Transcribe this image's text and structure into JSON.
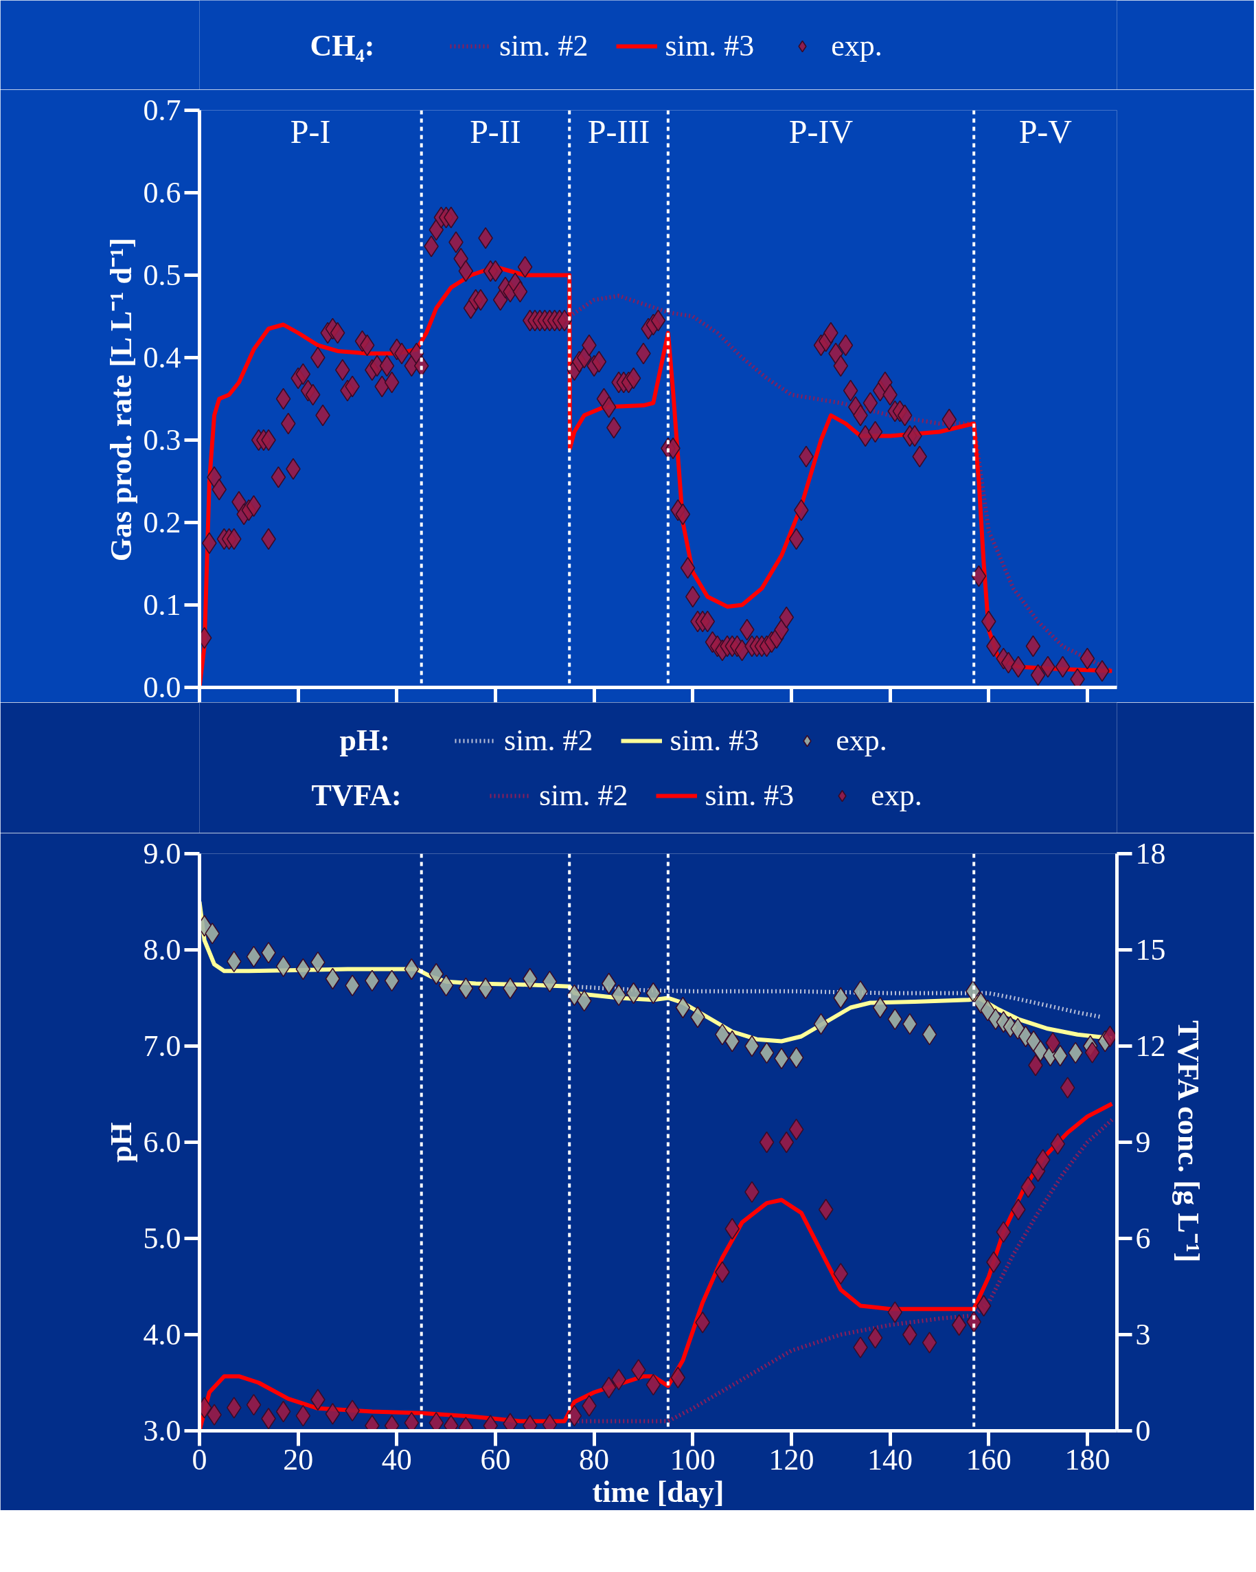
{
  "chart_data": [
    {
      "type": "line",
      "ylabel": "Gas prod. rate [L L⁻¹ d⁻¹]",
      "legend_title": "CH₄:",
      "legend": "top",
      "tick_labels": "y",
      "xlim": [
        0,
        186
      ],
      "xticks": [
        0,
        20,
        40,
        60,
        80,
        100,
        120,
        140,
        160,
        180
      ],
      "ylim": [
        0,
        0.7
      ],
      "yticks": [
        {
          "value": 0,
          "label": "0.0"
        },
        {
          "value": 0.1,
          "label": "0.1"
        },
        {
          "value": 0.2,
          "label": "0.2"
        },
        {
          "value": 0.3,
          "label": "0.3"
        },
        {
          "value": 0.4,
          "label": "0.4"
        },
        {
          "value": 0.5,
          "label": "0.5"
        },
        {
          "value": 0.6,
          "label": "0.6"
        },
        {
          "value": 0.7,
          "label": "0.7"
        }
      ],
      "ref_lines": [
        {
          "axis": "x",
          "value": 45,
          "color": "#ffffff",
          "line_style": "dashed"
        },
        {
          "axis": "x",
          "value": 75,
          "color": "#ffffff",
          "line_style": "dashed"
        },
        {
          "axis": "x",
          "value": 95,
          "color": "#ffffff",
          "line_style": "dashed"
        },
        {
          "axis": "x",
          "value": 157,
          "color": "#ffffff",
          "line_style": "dashed"
        }
      ],
      "annotations": [
        "P-I",
        "P-II",
        "P-III",
        "P-IV",
        "P-V"
      ],
      "series": [
        {
          "name": "sim. #2",
          "type": "line",
          "line_style": "dotted",
          "color": "#8a1e5a",
          "x": [
            75,
            80,
            85,
            90,
            95,
            100,
            105,
            110,
            115,
            120,
            125,
            130,
            140,
            150,
            157,
            160,
            165,
            170,
            175,
            180,
            185
          ],
          "values": [
            0.45,
            0.47,
            0.475,
            0.465,
            0.455,
            0.45,
            0.43,
            0.4,
            0.375,
            0.355,
            0.35,
            0.345,
            0.33,
            0.32,
            0.32,
            0.19,
            0.12,
            0.08,
            0.05,
            0.035,
            0.02
          ]
        },
        {
          "name": "sim. #3",
          "type": "line",
          "line_style": "solid",
          "color": "#ff0000",
          "x": [
            0,
            1,
            2,
            3,
            4,
            6,
            8,
            11,
            14,
            17,
            20,
            24,
            28,
            34,
            40,
            44,
            46,
            48,
            51,
            55,
            60,
            66,
            75,
            75.1,
            76,
            78,
            82,
            90,
            92,
            95,
            96,
            97,
            98,
            100,
            103,
            107,
            110,
            114,
            118,
            122,
            126,
            128,
            131,
            134,
            140,
            150,
            157,
            158,
            159,
            160,
            162,
            166,
            175,
            185
          ],
          "values": [
            0,
            0.05,
            0.25,
            0.33,
            0.35,
            0.355,
            0.37,
            0.41,
            0.435,
            0.44,
            0.43,
            0.415,
            0.408,
            0.405,
            0.405,
            0.41,
            0.43,
            0.46,
            0.485,
            0.5,
            0.51,
            0.5,
            0.5,
            0.29,
            0.31,
            0.33,
            0.34,
            0.342,
            0.345,
            0.43,
            0.36,
            0.28,
            0.2,
            0.14,
            0.11,
            0.098,
            0.1,
            0.12,
            0.16,
            0.22,
            0.3,
            0.33,
            0.32,
            0.305,
            0.305,
            0.31,
            0.32,
            0.25,
            0.15,
            0.07,
            0.035,
            0.025,
            0.022,
            0.02
          ]
        },
        {
          "name": "exp.",
          "type": "scatter",
          "marker": "diamond",
          "color": "#9b1b45",
          "x": [
            1,
            2,
            3,
            4,
            5,
            6,
            7,
            8,
            9,
            10,
            11,
            12,
            13,
            14,
            14,
            16,
            17,
            18,
            19,
            20,
            21,
            22,
            23,
            24,
            25,
            26,
            27,
            28,
            29,
            30,
            31,
            33,
            34,
            35,
            36,
            37,
            38,
            39,
            40,
            41,
            43,
            44,
            45,
            47,
            48,
            49,
            50,
            51,
            52,
            53,
            54,
            55,
            56,
            57,
            58,
            59,
            60,
            61,
            62,
            63,
            64,
            65,
            66,
            67,
            68,
            69,
            70,
            71,
            72,
            73,
            74,
            76,
            77,
            78,
            79,
            80,
            81,
            82,
            83,
            84,
            85,
            86,
            87,
            88,
            90,
            91,
            92,
            93,
            95,
            96,
            97,
            98,
            99,
            100,
            101,
            102,
            103,
            104,
            105,
            106,
            107,
            108,
            109,
            110,
            111,
            112,
            113,
            114,
            115,
            116,
            117,
            118,
            119,
            121,
            122,
            123,
            126,
            127,
            128,
            129,
            130,
            131,
            132,
            133,
            134,
            135,
            136,
            137,
            138,
            139,
            140,
            141,
            142,
            143,
            144,
            145,
            146,
            152,
            158,
            160,
            161,
            163,
            164,
            166,
            169,
            170,
            172,
            175,
            178,
            180,
            183
          ],
          "values": [
            0.06,
            0.175,
            0.255,
            0.24,
            0.18,
            0.18,
            0.18,
            0.225,
            0.21,
            0.215,
            0.22,
            0.3,
            0.3,
            0.3,
            0.18,
            0.255,
            0.35,
            0.32,
            0.265,
            0.375,
            0.38,
            0.36,
            0.355,
            0.4,
            0.33,
            0.43,
            0.435,
            0.43,
            0.385,
            0.36,
            0.365,
            0.42,
            0.415,
            0.385,
            0.39,
            0.365,
            0.39,
            0.37,
            0.41,
            0.405,
            0.39,
            0.405,
            0.39,
            0.535,
            0.555,
            0.57,
            0.57,
            0.57,
            0.54,
            0.52,
            0.505,
            0.46,
            0.47,
            0.47,
            0.545,
            0.505,
            0.505,
            0.47,
            0.485,
            0.48,
            0.49,
            0.48,
            0.51,
            0.445,
            0.445,
            0.445,
            0.445,
            0.445,
            0.445,
            0.445,
            0.445,
            0.385,
            0.395,
            0.4,
            0.415,
            0.39,
            0.395,
            0.35,
            0.34,
            0.315,
            0.37,
            0.37,
            0.37,
            0.375,
            0.405,
            0.435,
            0.44,
            0.445,
            0.29,
            0.29,
            0.215,
            0.21,
            0.145,
            0.11,
            0.08,
            0.08,
            0.08,
            0.055,
            0.05,
            0.045,
            0.05,
            0.05,
            0.05,
            0.045,
            0.07,
            0.05,
            0.05,
            0.05,
            0.05,
            0.055,
            0.06,
            0.07,
            0.085,
            0.18,
            0.215,
            0.28,
            0.415,
            0.42,
            0.43,
            0.405,
            0.39,
            0.415,
            0.36,
            0.34,
            0.33,
            0.305,
            0.345,
            0.31,
            0.36,
            0.37,
            0.355,
            0.335,
            0.335,
            0.33,
            0.305,
            0.305,
            0.28,
            0.325,
            0.135,
            0.08,
            0.05,
            0.035,
            0.03,
            0.025,
            0.05,
            0.015,
            0.025,
            0.025,
            0.01,
            0.035,
            0.02
          ]
        }
      ]
    },
    {
      "type": "line",
      "xlabel": "time [day]",
      "ylabel": "pH",
      "y2label": "TVFA conc. [g L⁻¹]",
      "legend_title": "pH:",
      "legend": "top",
      "annotations": [
        "TVFA:"
      ],
      "xlim": [
        0,
        186
      ],
      "xticks": [
        0,
        20,
        40,
        60,
        80,
        100,
        120,
        140,
        160,
        180
      ],
      "ylim": [
        3,
        9
      ],
      "yticks": [
        {
          "value": 3,
          "label": "3.0"
        },
        {
          "value": 4,
          "label": "4.0"
        },
        {
          "value": 5,
          "label": "5.0"
        },
        {
          "value": 6,
          "label": "6.0"
        },
        {
          "value": 7,
          "label": "7.0"
        },
        {
          "value": 8,
          "label": "8.0"
        },
        {
          "value": 9,
          "label": "9.0"
        }
      ],
      "y2lim": [
        0,
        18
      ],
      "y2ticks": [
        0,
        3,
        6,
        9,
        12,
        15,
        18
      ],
      "ref_lines": [
        {
          "axis": "x",
          "value": 45,
          "color": "#ffffff",
          "line_style": "dashed"
        },
        {
          "axis": "x",
          "value": 75,
          "color": "#ffffff",
          "line_style": "dashed"
        },
        {
          "axis": "x",
          "value": 95,
          "color": "#ffffff",
          "line_style": "dashed"
        },
        {
          "axis": "x",
          "value": 157,
          "color": "#ffffff",
          "line_style": "dashed"
        }
      ],
      "series": [
        {
          "name": "sim. #2",
          "type": "line",
          "line_style": "dotted",
          "color": "#b8c0d8",
          "x": [
            75,
            90,
            100,
            120,
            140,
            157,
            160,
            165,
            172,
            178,
            183
          ],
          "values": [
            7.62,
            7.58,
            7.57,
            7.57,
            7.55,
            7.55,
            7.55,
            7.5,
            7.42,
            7.35,
            7.3
          ]
        },
        {
          "name": "sim. #3",
          "type": "line",
          "line_style": "solid",
          "color": "#ffff99",
          "x": [
            0,
            1,
            3,
            5,
            10,
            20,
            30,
            44,
            47,
            50,
            56,
            65,
            75,
            76,
            85,
            92,
            95,
            98,
            103,
            108,
            113,
            118,
            122,
            127,
            132,
            136,
            145,
            156,
            158,
            162,
            166,
            172,
            178,
            185
          ],
          "values": [
            8.5,
            8.1,
            7.85,
            7.78,
            7.78,
            7.79,
            7.8,
            7.8,
            7.72,
            7.67,
            7.65,
            7.64,
            7.62,
            7.55,
            7.5,
            7.48,
            7.5,
            7.45,
            7.3,
            7.15,
            7.07,
            7.05,
            7.1,
            7.25,
            7.4,
            7.45,
            7.46,
            7.48,
            7.5,
            7.38,
            7.28,
            7.18,
            7.12,
            7.08
          ]
        },
        {
          "name": "exp.",
          "type": "scatter",
          "marker": "diamond",
          "color": "#a3b3a3",
          "x": [
            1,
            2.6,
            7,
            11,
            14,
            17,
            21,
            24,
            27,
            31,
            35,
            39,
            43,
            48,
            50,
            54,
            58,
            63,
            67,
            71,
            76,
            78,
            83,
            85,
            88,
            92,
            98,
            101,
            106,
            108,
            112,
            115,
            118,
            121,
            126,
            130,
            134,
            138,
            141,
            144,
            148,
            156.8,
            158.4,
            159.8,
            161.4,
            163,
            164.4,
            165.9,
            167.5,
            169.1,
            170.5,
            172.5,
            174.5,
            177.6,
            180.6,
            183.6
          ],
          "values": [
            8.25,
            8.17,
            7.88,
            7.93,
            7.97,
            7.83,
            7.8,
            7.87,
            7.7,
            7.63,
            7.68,
            7.68,
            7.8,
            7.75,
            7.63,
            7.6,
            7.6,
            7.6,
            7.7,
            7.67,
            7.53,
            7.47,
            7.65,
            7.53,
            7.55,
            7.55,
            7.4,
            7.3,
            7.12,
            7.05,
            7.0,
            6.93,
            6.87,
            6.88,
            7.23,
            7.5,
            7.57,
            7.4,
            7.28,
            7.23,
            7.12,
            7.57,
            7.45,
            7.37,
            7.28,
            7.25,
            7.2,
            7.18,
            7.1,
            7.05,
            6.95,
            6.9,
            6.9,
            6.93,
            7.0,
            7.05
          ]
        },
        {
          "name": "sim. #2",
          "type": "line",
          "line_style": "dotted",
          "axis": "y2",
          "color": "#8a1e5a",
          "x": [
            75,
            85,
            95,
            100,
            110,
            120,
            130,
            140,
            150,
            157,
            160,
            165,
            170,
            175,
            180,
            185
          ],
          "values": [
            0.3,
            0.3,
            0.3,
            0.7,
            1.6,
            2.5,
            3.0,
            3.3,
            3.5,
            3.6,
            4.0,
            5.5,
            6.8,
            8.0,
            9.0,
            9.7
          ]
        },
        {
          "name": "sim. #3",
          "type": "line",
          "line_style": "solid",
          "axis": "y2",
          "color": "#ff0000",
          "x": [
            0,
            2,
            5,
            8,
            12,
            18,
            24,
            35,
            45,
            55,
            65,
            74,
            76,
            80,
            86,
            90,
            92,
            95,
            98,
            102,
            106,
            110,
            115,
            118,
            122,
            126,
            130,
            134,
            140,
            150,
            157,
            160,
            163,
            167,
            171,
            176,
            180,
            185
          ],
          "values": [
            0,
            1.2,
            1.7,
            1.7,
            1.5,
            1.0,
            0.7,
            0.6,
            0.55,
            0.45,
            0.3,
            0.3,
            0.9,
            1.2,
            1.5,
            1.7,
            1.7,
            1.4,
            2.2,
            4.0,
            5.4,
            6.5,
            7.1,
            7.2,
            6.8,
            5.6,
            4.4,
            3.9,
            3.8,
            3.8,
            3.8,
            4.8,
            6.2,
            7.5,
            8.5,
            9.3,
            9.8,
            10.2
          ]
        },
        {
          "name": "exp.",
          "type": "scatter",
          "marker": "diamond",
          "axis": "y2",
          "color": "#9b1b45",
          "x": [
            1,
            3,
            7,
            11,
            14,
            17,
            21,
            24,
            27,
            31,
            35,
            39,
            43,
            48,
            51,
            54,
            59,
            63,
            67,
            71,
            76,
            79,
            83,
            85,
            89,
            92,
            97,
            102,
            106,
            108,
            112,
            115,
            119,
            121,
            127,
            130,
            134,
            137,
            141,
            144,
            148,
            154,
            157,
            159,
            161,
            163,
            166,
            168,
            170,
            171,
            174,
            176,
            169.5,
            173,
            181,
            184.6
          ],
          "values": [
            0.72,
            0.5,
            0.72,
            0.81,
            0.38,
            0.6,
            0.47,
            0.97,
            0.53,
            0.63,
            0.16,
            0.16,
            0.25,
            0.25,
            0.16,
            0.1,
            0.16,
            0.22,
            0.16,
            0.19,
            0.47,
            0.78,
            1.35,
            1.6,
            1.9,
            1.44,
            1.66,
            3.38,
            4.95,
            6.3,
            7.45,
            9.0,
            9.0,
            9.4,
            6.9,
            4.9,
            2.6,
            2.9,
            3.7,
            3.0,
            2.75,
            3.3,
            3.4,
            3.9,
            5.26,
            6.2,
            6.9,
            7.6,
            8.1,
            8.45,
            8.95,
            10.7,
            11.4,
            12.1,
            11.8,
            12.3
          ]
        }
      ]
    }
  ]
}
